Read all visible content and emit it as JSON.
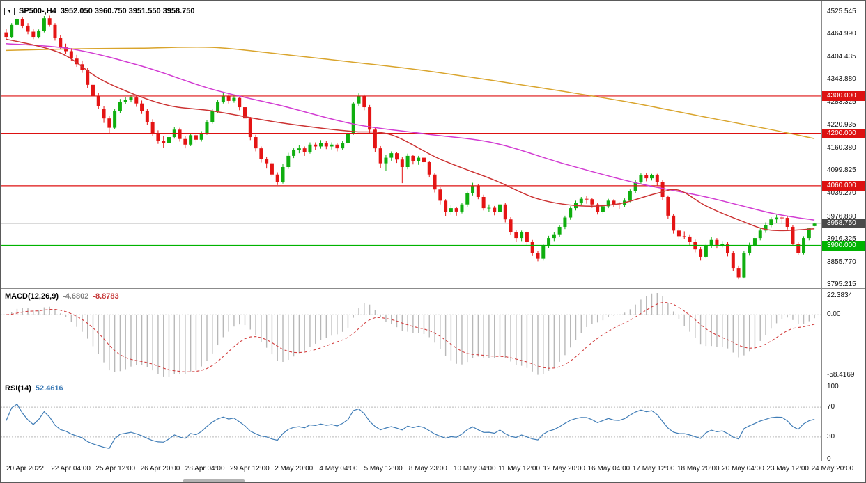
{
  "window": {
    "marker_icon": "▼",
    "symbol": "SP500-,H4",
    "ohlc_readout": "3952.050 3960.750 3951.550 3958.750"
  },
  "chart_data": [
    {
      "name": "price",
      "type": "candlestick",
      "up_color": "#0fae0f",
      "down_color": "#e41414",
      "y_range": [
        3788,
        4540
      ],
      "y_axis_labels": [
        "4525.545",
        "4464.990",
        "4404.435",
        "4343.880",
        "4283.325",
        "4220.935",
        "4160.380",
        "4099.825",
        "4039.270",
        "3976.880",
        "3916.325",
        "3855.770",
        "3795.215"
      ],
      "current_price": {
        "value": 3958.75,
        "label": "3958.750",
        "color": "#4a4a4a",
        "line_color": "#cdcdcd"
      },
      "hlines": [
        {
          "value": 4300,
          "label": "4300.000",
          "color": "#dd1111",
          "width": 1.2
        },
        {
          "value": 4200,
          "label": "4200.000",
          "color": "#dd1111",
          "width": 1.2
        },
        {
          "value": 4060,
          "label": "4060.000",
          "color": "#dd1111",
          "width": 1.2
        },
        {
          "value": 3900,
          "label": "3900.000",
          "color": "#00b300",
          "width": 1.8
        }
      ],
      "moving_averages": [
        {
          "name": "ma-slow-line",
          "color": "#d9a42c",
          "points": [
            [
              0,
              4422
            ],
            [
              12,
              4426
            ],
            [
              25,
              4428
            ],
            [
              38,
              4430
            ],
            [
              50,
              4413
            ],
            [
              63,
              4392
            ],
            [
              76,
              4370
            ],
            [
              89,
              4343
            ],
            [
              102,
              4314
            ],
            [
              115,
              4283
            ],
            [
              128,
              4246
            ],
            [
              140,
              4213
            ],
            [
              149,
              4186
            ]
          ]
        },
        {
          "name": "ma-medium-line",
          "color": "#d23bd2",
          "points": [
            [
              0,
              4440
            ],
            [
              12,
              4426
            ],
            [
              25,
              4380
            ],
            [
              38,
              4318
            ],
            [
              51,
              4273
            ],
            [
              64,
              4225
            ],
            [
              77,
              4199
            ],
            [
              90,
              4174
            ],
            [
              103,
              4118
            ],
            [
              116,
              4068
            ],
            [
              129,
              4030
            ],
            [
              141,
              3987
            ],
            [
              149,
              3968
            ]
          ]
        },
        {
          "name": "ma-fast-line",
          "color": "#cc3333",
          "points": [
            [
              0,
              4452
            ],
            [
              10,
              4415
            ],
            [
              18,
              4340
            ],
            [
              29,
              4278
            ],
            [
              38,
              4260
            ],
            [
              49,
              4232
            ],
            [
              58,
              4214
            ],
            [
              64,
              4205
            ],
            [
              71,
              4196
            ],
            [
              80,
              4131
            ],
            [
              90,
              4075
            ],
            [
              98,
              4025
            ],
            [
              106,
              4006
            ],
            [
              113,
              4012
            ],
            [
              120,
              4040
            ],
            [
              124,
              4048
            ],
            [
              129,
              4006
            ],
            [
              135,
              3969
            ],
            [
              141,
              3941
            ],
            [
              149,
              3945
            ]
          ]
        }
      ],
      "ohlc": [
        [
          4470,
          4480,
          4452,
          4458
        ],
        [
          4458,
          4495,
          4455,
          4490
        ],
        [
          4490,
          4512,
          4486,
          4505
        ],
        [
          4505,
          4510,
          4482,
          4488
        ],
        [
          4488,
          4495,
          4465,
          4472
        ],
        [
          4472,
          4480,
          4452,
          4458
        ],
        [
          4458,
          4478,
          4454,
          4474
        ],
        [
          4474,
          4514,
          4470,
          4508
        ],
        [
          4508,
          4515,
          4485,
          4490
        ],
        [
          4490,
          4495,
          4448,
          4455
        ],
        [
          4455,
          4462,
          4425,
          4430
        ],
        [
          4430,
          4440,
          4412,
          4420
        ],
        [
          4420,
          4428,
          4394,
          4400
        ],
        [
          4400,
          4410,
          4378,
          4385
        ],
        [
          4385,
          4395,
          4362,
          4370
        ],
        [
          4370,
          4376,
          4322,
          4330
        ],
        [
          4330,
          4338,
          4292,
          4300
        ],
        [
          4300,
          4308,
          4265,
          4272
        ],
        [
          4265,
          4272,
          4228,
          4240
        ],
        [
          4240,
          4246,
          4200,
          4215
        ],
        [
          4215,
          4265,
          4211,
          4260
        ],
        [
          4260,
          4292,
          4255,
          4285
        ],
        [
          4285,
          4298,
          4278,
          4290
        ],
        [
          4290,
          4302,
          4283,
          4296
        ],
        [
          4296,
          4300,
          4271,
          4280
        ],
        [
          4280,
          4288,
          4252,
          4260
        ],
        [
          4260,
          4266,
          4222,
          4230
        ],
        [
          4230,
          4238,
          4192,
          4200
        ],
        [
          4200,
          4208,
          4172,
          4180
        ],
        [
          4180,
          4192,
          4162,
          4175
        ],
        [
          4175,
          4196,
          4168,
          4190
        ],
        [
          4190,
          4218,
          4186,
          4210
        ],
        [
          4210,
          4215,
          4178,
          4185
        ],
        [
          4185,
          4192,
          4160,
          4170
        ],
        [
          4170,
          4200,
          4166,
          4195
        ],
        [
          4195,
          4199,
          4176,
          4183
        ],
        [
          4183,
          4206,
          4178,
          4200
        ],
        [
          4200,
          4236,
          4196,
          4230
        ],
        [
          4230,
          4266,
          4226,
          4260
        ],
        [
          4260,
          4290,
          4255,
          4285
        ],
        [
          4285,
          4308,
          4280,
          4300
        ],
        [
          4300,
          4305,
          4280,
          4287
        ],
        [
          4287,
          4302,
          4282,
          4295
        ],
        [
          4295,
          4298,
          4262,
          4270
        ],
        [
          4270,
          4276,
          4232,
          4240
        ],
        [
          4240,
          4244,
          4182,
          4190
        ],
        [
          4190,
          4196,
          4152,
          4160
        ],
        [
          4160,
          4165,
          4122,
          4131
        ],
        [
          4131,
          4138,
          4106,
          4120
        ],
        [
          4120,
          4125,
          4082,
          4090
        ],
        [
          4090,
          4096,
          4062,
          4070
        ],
        [
          4070,
          4118,
          4066,
          4110
        ],
        [
          4110,
          4148,
          4105,
          4140
        ],
        [
          4140,
          4160,
          4134,
          4155
        ],
        [
          4155,
          4168,
          4147,
          4160
        ],
        [
          4160,
          4165,
          4140,
          4150
        ],
        [
          4150,
          4176,
          4146,
          4170
        ],
        [
          4170,
          4176,
          4155,
          4165
        ],
        [
          4165,
          4182,
          4159,
          4175
        ],
        [
          4175,
          4180,
          4158,
          4165
        ],
        [
          4165,
          4176,
          4157,
          4170
        ],
        [
          4170,
          4174,
          4152,
          4160
        ],
        [
          4160,
          4180,
          4155,
          4175
        ],
        [
          4175,
          4205,
          4170,
          4200
        ],
        [
          4200,
          4285,
          4196,
          4280
        ],
        [
          4280,
          4307,
          4274,
          4300
        ],
        [
          4300,
          4304,
          4262,
          4270
        ],
        [
          4270,
          4276,
          4200,
          4210
        ],
        [
          4210,
          4216,
          4150,
          4160
        ],
        [
          4160,
          4166,
          4108,
          4120
        ],
        [
          4120,
          4142,
          4100,
          4135
        ],
        [
          4135,
          4152,
          4127,
          4147
        ],
        [
          4147,
          4150,
          4121,
          4130
        ],
        [
          4130,
          4136,
          4067,
          4110
        ],
        [
          4110,
          4146,
          4104,
          4140
        ],
        [
          4140,
          4142,
          4117,
          4125
        ],
        [
          4125,
          4140,
          4116,
          4135
        ],
        [
          4135,
          4138,
          4112,
          4123
        ],
        [
          4123,
          4126,
          4082,
          4090
        ],
        [
          4090,
          4094,
          4042,
          4050
        ],
        [
          4050,
          4056,
          4010,
          4020
        ],
        [
          4020,
          4024,
          3978,
          3990
        ],
        [
          3990,
          4008,
          3982,
          4000
        ],
        [
          4000,
          4004,
          3980,
          3991
        ],
        [
          3991,
          4014,
          3986,
          4010
        ],
        [
          4010,
          4044,
          4004,
          4040
        ],
        [
          4040,
          4068,
          4034,
          4060
        ],
        [
          4060,
          4064,
          4024,
          4030
        ],
        [
          4030,
          4036,
          3994,
          4000
        ],
        [
          4000,
          4010,
          3990,
          4001
        ],
        [
          4001,
          4006,
          3981,
          3990
        ],
        [
          3990,
          4014,
          3985,
          4010
        ],
        [
          4010,
          4014,
          3962,
          3970
        ],
        [
          3970,
          3976,
          3928,
          3935
        ],
        [
          3935,
          3942,
          3909,
          3920
        ],
        [
          3920,
          3940,
          3912,
          3935
        ],
        [
          3935,
          3938,
          3901,
          3910
        ],
        [
          3910,
          3915,
          3872,
          3880
        ],
        [
          3880,
          3886,
          3858,
          3865
        ],
        [
          3865,
          3905,
          3860,
          3900
        ],
        [
          3900,
          3926,
          3894,
          3920
        ],
        [
          3920,
          3936,
          3912,
          3930
        ],
        [
          3930,
          3955,
          3924,
          3950
        ],
        [
          3950,
          3980,
          3944,
          3975
        ],
        [
          3975,
          4005,
          3969,
          4000
        ],
        [
          4000,
          4020,
          3994,
          4015
        ],
        [
          4015,
          4030,
          4008,
          4025
        ],
        [
          4025,
          4032,
          4012,
          4024
        ],
        [
          4024,
          4028,
          4001,
          4010
        ],
        [
          4010,
          4014,
          3983,
          3990
        ],
        [
          3990,
          4010,
          3985,
          4005
        ],
        [
          4005,
          4025,
          4000,
          4020
        ],
        [
          4020,
          4024,
          4002,
          4010
        ],
        [
          4010,
          4016,
          3997,
          4008
        ],
        [
          4008,
          4026,
          4003,
          4020
        ],
        [
          4020,
          4050,
          4016,
          4045
        ],
        [
          4045,
          4075,
          4040,
          4070
        ],
        [
          4070,
          4093,
          4064,
          4088
        ],
        [
          4088,
          4095,
          4072,
          4080
        ],
        [
          4080,
          4092,
          4074,
          4089
        ],
        [
          4089,
          4092,
          4061,
          4070
        ],
        [
          4070,
          4075,
          4022,
          4030
        ],
        [
          4030,
          4034,
          3972,
          3980
        ],
        [
          3980,
          3984,
          3932,
          3940
        ],
        [
          3940,
          3948,
          3916,
          3925
        ],
        [
          3925,
          3938,
          3917,
          3924
        ],
        [
          3924,
          3930,
          3901,
          3910
        ],
        [
          3910,
          3916,
          3882,
          3890
        ],
        [
          3890,
          3896,
          3860,
          3870
        ],
        [
          3870,
          3906,
          3866,
          3900
        ],
        [
          3900,
          3922,
          3893,
          3915
        ],
        [
          3915,
          3920,
          3892,
          3900
        ],
        [
          3900,
          3912,
          3895,
          3905
        ],
        [
          3905,
          3910,
          3871,
          3880
        ],
        [
          3880,
          3886,
          3832,
          3840
        ],
        [
          3840,
          3846,
          3810,
          3815
        ],
        [
          3815,
          3886,
          3812,
          3880
        ],
        [
          3880,
          3908,
          3873,
          3901
        ],
        [
          3901,
          3926,
          3896,
          3920
        ],
        [
          3920,
          3946,
          3914,
          3940
        ],
        [
          3940,
          3962,
          3934,
          3955
        ],
        [
          3955,
          3976,
          3949,
          3970
        ],
        [
          3970,
          3982,
          3961,
          3975
        ],
        [
          3975,
          3980,
          3958,
          3974
        ],
        [
          3974,
          3978,
          3943,
          3950
        ],
        [
          3950,
          3954,
          3898,
          3905
        ],
        [
          3905,
          3910,
          3874,
          3880
        ],
        [
          3880,
          3925,
          3876,
          3920
        ],
        [
          3920,
          3948,
          3914,
          3946
        ],
        [
          3952.05,
          3960.75,
          3951.55,
          3958.75
        ]
      ],
      "x_labels": [
        "20 Apr 2022",
        "22 Apr 04:00",
        "25 Apr 12:00",
        "26 Apr 20:00",
        "28 Apr 04:00",
        "29 Apr 12:00",
        "2 May 20:00",
        "4 May 04:00",
        "5 May 12:00",
        "8 May 23:00",
        "10 May 04:00",
        "11 May 12:00",
        "12 May 20:00",
        "16 May 04:00",
        "17 May 12:00",
        "18 May 20:00",
        "20 May 04:00",
        "23 May 12:00",
        "24 May 20:00"
      ]
    },
    {
      "name": "macd",
      "type": "histogram_line",
      "label": "MACD(12,26,9)",
      "value_macd": "-4.6802",
      "value_signal": "-8.8783",
      "params": [
        12,
        26,
        9
      ],
      "histogram_color": "#b8b8b8",
      "signal_color": "#d23f3f",
      "y_axis_labels": [
        "22.3834",
        "0.00",
        "-58.4169"
      ]
    },
    {
      "name": "rsi",
      "type": "line",
      "label": "RSI(14)",
      "value": "52.4616",
      "period": 14,
      "line_color": "#3f7cb6",
      "levels": [
        70,
        30
      ],
      "level_values": [
        100,
        70,
        30,
        0
      ],
      "y_axis_labels": [
        "100",
        "70",
        "30",
        "0"
      ],
      "y_range": [
        0,
        100
      ]
    }
  ]
}
